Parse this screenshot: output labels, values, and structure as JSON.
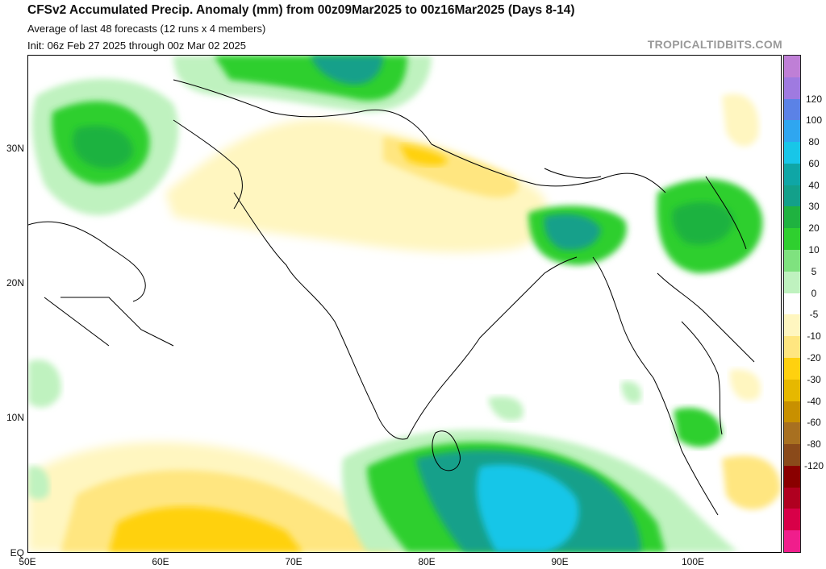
{
  "header": {
    "title": "CFSv2 Accumulated Precip. Anomaly (mm) from 00z09Mar2025 to 00z16Mar2025 (Days 8-14)",
    "line2": "Average of last 48 forecasts (12 runs x 4 members)",
    "line3": "Init: 06z Feb 27 2025 through 00z Mar 02 2025",
    "watermark": "TROPICALTIDBITS.COM"
  },
  "map": {
    "latitude_labels": [
      "30N",
      "20N",
      "10N",
      "EQ"
    ],
    "longitude_labels": [
      "50E",
      "60E",
      "70E",
      "80E",
      "90E",
      "100E"
    ]
  },
  "colorbar": {
    "labels": [
      "120",
      "100",
      "80",
      "60",
      "40",
      "30",
      "20",
      "10",
      "5",
      "0",
      "-5",
      "-10",
      "-20",
      "-30",
      "-40",
      "-60",
      "-80",
      "-120"
    ],
    "colors": [
      "#bf7fd6",
      "#9f7ae0",
      "#5b82e6",
      "#2fa6f0",
      "#18c6e8",
      "#0fa6a6",
      "#13a08a",
      "#1fb240",
      "#2fcf2f",
      "#7fe27f",
      "#bff2bf",
      "#ffffff",
      "#fff6c0",
      "#ffe680",
      "#ffd10f",
      "#e6b800",
      "#c89000",
      "#a87020",
      "#8a4a1a",
      "#8a0000",
      "#b00020",
      "#d80048",
      "#f01e8c"
    ]
  }
}
